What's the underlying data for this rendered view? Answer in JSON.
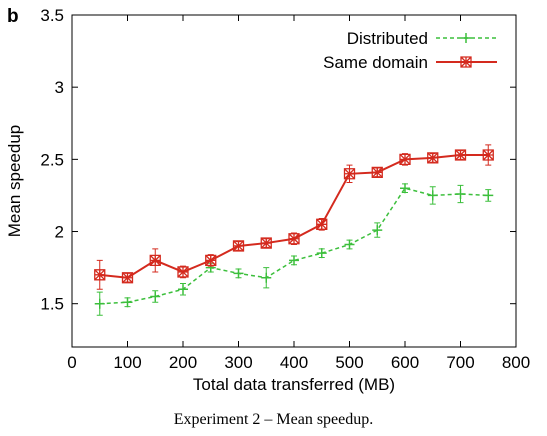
{
  "figure": {
    "panel_label": "b",
    "caption": "Experiment 2 – Mean speedup."
  },
  "colors": {
    "distributed": "#3cbf3c",
    "same_domain": "#d42a1e",
    "axis": "#000000"
  },
  "chart_data": {
    "type": "line",
    "xlabel": "Total data transferred (MB)",
    "ylabel": "Mean speedup",
    "xlim": [
      0,
      800
    ],
    "ylim": [
      1.2,
      3.5
    ],
    "x_ticks": [
      0,
      100,
      200,
      300,
      400,
      500,
      600,
      700,
      800
    ],
    "y_ticks": [
      1.5,
      2,
      2.5,
      3,
      3.5
    ],
    "grid": false,
    "legend_position": "top-right",
    "x": [
      50,
      100,
      150,
      200,
      250,
      300,
      350,
      400,
      450,
      500,
      550,
      600,
      650,
      700,
      750
    ],
    "series": [
      {
        "name": "Distributed",
        "style": "dashed",
        "marker": "plus",
        "values": [
          1.5,
          1.51,
          1.55,
          1.6,
          1.75,
          1.71,
          1.68,
          1.8,
          1.85,
          1.91,
          2.01,
          2.3,
          2.25,
          2.26,
          2.25
        ],
        "error": [
          0.08,
          0.03,
          0.04,
          0.04,
          0.03,
          0.03,
          0.07,
          0.03,
          0.03,
          0.03,
          0.05,
          0.03,
          0.06,
          0.06,
          0.04
        ]
      },
      {
        "name": "Same domain",
        "style": "solid",
        "marker": "boxed-star",
        "values": [
          1.7,
          1.68,
          1.8,
          1.72,
          1.8,
          1.9,
          1.92,
          1.95,
          2.05,
          2.4,
          2.41,
          2.5,
          2.51,
          2.53,
          2.53
        ],
        "error": [
          0.1,
          0.03,
          0.08,
          0.04,
          0.04,
          0.03,
          0.03,
          0.04,
          0.04,
          0.06,
          0.03,
          0.04,
          0.03,
          0.03,
          0.07
        ]
      }
    ]
  }
}
